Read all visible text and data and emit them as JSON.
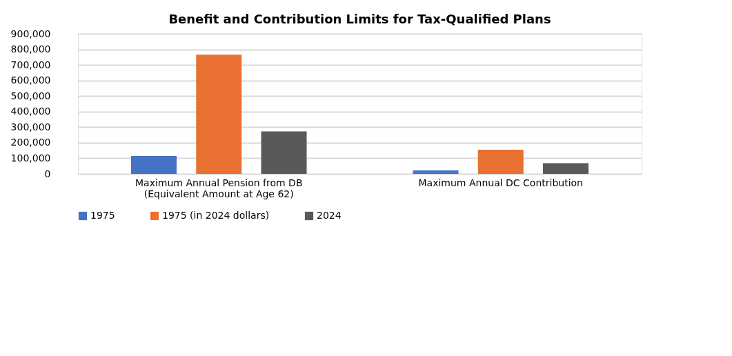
{
  "chart_data": {
    "type": "bar",
    "title": "Benefit and Contribution Limits for Tax-Qualified Plans",
    "categories": [
      "Maximum Annual Pension from DB\n(Equivalent Amount at Age 62)",
      "Maximum Annual DC Contribution"
    ],
    "series": [
      {
        "name": "1975",
        "color": "#4472c4",
        "values": [
          115000,
          22000
        ]
      },
      {
        "name": "1975 (in 2024 dollars)",
        "color": "#e97132",
        "values": [
          766000,
          155000
        ]
      },
      {
        "name": "2024",
        "color": "#595959",
        "values": [
          273000,
          69000
        ]
      }
    ],
    "ylim": [
      0,
      900000
    ],
    "yticks": [
      {
        "value": 0,
        "label": "0"
      },
      {
        "value": 100000,
        "label": "100,000"
      },
      {
        "value": 200000,
        "label": "200,000"
      },
      {
        "value": 300000,
        "label": "300,000"
      },
      {
        "value": 400000,
        "label": "400,000"
      },
      {
        "value": 500000,
        "label": "500,000"
      },
      {
        "value": 600000,
        "label": "600,000"
      },
      {
        "value": 700000,
        "label": "700,000"
      },
      {
        "value": 800000,
        "label": "800,000"
      },
      {
        "value": 900000,
        "label": "900,000"
      }
    ],
    "grid": "y",
    "legend": "bottom"
  }
}
